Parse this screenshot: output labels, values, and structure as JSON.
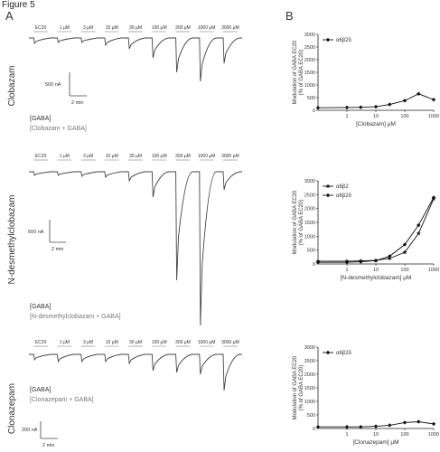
{
  "figure": {
    "title": "Figure 5",
    "panel_a": "A",
    "panel_b": "B"
  },
  "traces": {
    "clobazam": {
      "drug_label": "Clobazam",
      "conc_labels": [
        "EC20",
        "1 μM",
        "3 μM",
        "10 μM",
        "30 μM",
        "100 μM",
        "300 μM",
        "1000 μM",
        "3000 μM"
      ],
      "scale_current": "500 nA",
      "scale_time": "2 min",
      "legend_gaba": "[GABA]",
      "legend_drug": "[Clobazam + GABA]"
    },
    "ndmc": {
      "drug_label": "N-desmethylclobazam",
      "conc_labels": [
        "EC20",
        "1 μM",
        "3 μM",
        "10 μM",
        "30 μM",
        "100 μM",
        "300 μM",
        "1000 μM",
        "3000 μM"
      ],
      "scale_current": "500 nA",
      "scale_time": "2 min",
      "legend_gaba": "[GABA]",
      "legend_drug": "[N-desmethylclobazam + GABA]"
    },
    "clonazepam": {
      "drug_label": "Clonazepam",
      "conc_labels": [
        "EC20",
        "1 μM",
        "3 μM",
        "10 μM",
        "30 μM",
        "100 μM",
        "300 μM",
        "1000 μM",
        "3000 μM"
      ],
      "scale_current": "200 nA",
      "scale_time": "2 min",
      "legend_gaba": "[GABA]",
      "legend_drug": "[Clonazepam + GABA]"
    }
  },
  "chart_data": [
    {
      "type": "line",
      "ylabel_line1": "Modulation of GABA EC20",
      "ylabel_line2": "(% of GABA EC20)",
      "xlabel": "[Clobazam] μM",
      "xscale": "log",
      "xlim": [
        0.1,
        1000
      ],
      "ylim": [
        0,
        3000
      ],
      "yticks": [
        "0",
        "500",
        "1000",
        "1500",
        "2000",
        "2500",
        "3000"
      ],
      "xticks": [
        "1",
        "10",
        "100",
        "1000"
      ],
      "legend_position": "top-left",
      "series": [
        {
          "name": "α6β2δ",
          "marker": "diamond",
          "x": [
            0.1,
            1,
            3,
            10,
            30,
            100,
            300,
            1000
          ],
          "y": [
            100,
            110,
            120,
            140,
            230,
            380,
            650,
            420
          ]
        }
      ]
    },
    {
      "type": "line",
      "ylabel_line1": "Modulation of GABA EC20",
      "ylabel_line2": "(% of GABA EC20)",
      "xlabel": "[N-desmethylclobazam] μM",
      "xscale": "log",
      "xlim": [
        0.1,
        1000
      ],
      "ylim": [
        0,
        3000
      ],
      "yticks": [
        "0",
        "500",
        "1000",
        "1500",
        "2000",
        "2500",
        "3000"
      ],
      "xticks": [
        "1",
        "10",
        "100",
        "1000"
      ],
      "legend_position": "top-left",
      "series": [
        {
          "name": "α6β2",
          "marker": "star",
          "x": [
            0.1,
            1,
            3,
            10,
            30,
            100,
            300,
            1000
          ],
          "y": [
            100,
            100,
            110,
            130,
            200,
            420,
            1100,
            2350
          ]
        },
        {
          "name": "α6β2δ",
          "marker": "diamond",
          "x": [
            0.1,
            1,
            3,
            10,
            30,
            100,
            300,
            1000
          ],
          "y": [
            60,
            60,
            80,
            120,
            280,
            700,
            1400,
            2400
          ]
        }
      ]
    },
    {
      "type": "line",
      "ylabel_line1": "Modulation of GABA EC20",
      "ylabel_line2": "(% of GABA EC20)",
      "xlabel": "[Clonazepam] μM",
      "xscale": "log",
      "xlim": [
        0.1,
        1000
      ],
      "ylim": [
        0,
        3000
      ],
      "yticks": [
        "0",
        "500",
        "1000",
        "1500",
        "2000",
        "2500",
        "3000"
      ],
      "xticks": [
        "1",
        "10",
        "100",
        "1000"
      ],
      "legend_position": "top-left",
      "series": [
        {
          "name": "α6β2δ",
          "marker": "diamond",
          "x": [
            0.1,
            1,
            3,
            10,
            30,
            100,
            300,
            1000
          ],
          "y": [
            60,
            60,
            60,
            80,
            120,
            220,
            250,
            170
          ]
        }
      ]
    }
  ]
}
